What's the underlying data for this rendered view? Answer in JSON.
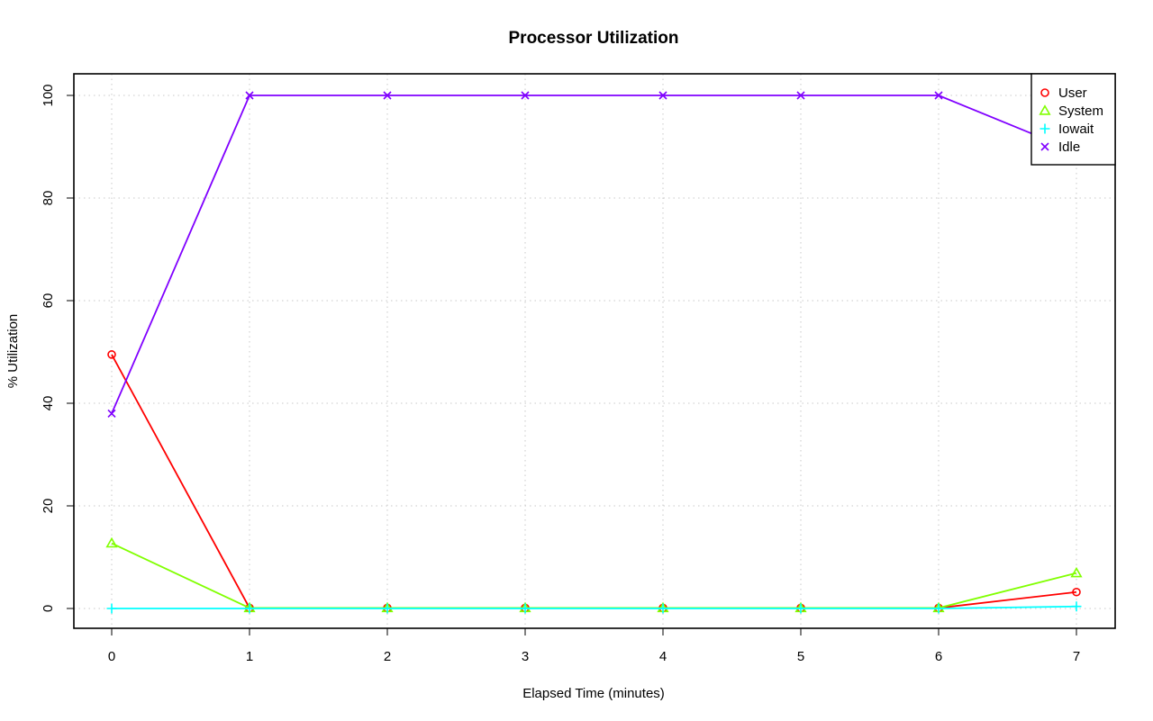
{
  "chart_data": {
    "type": "line",
    "title": "Processor Utilization",
    "xlabel": "Elapsed Time (minutes)",
    "ylabel": "% Utilization",
    "x": [
      0,
      1,
      2,
      3,
      4,
      5,
      6,
      7
    ],
    "xlim": [
      0,
      7
    ],
    "ylim": [
      0,
      100
    ],
    "x_ticks": [
      "0",
      "1",
      "2",
      "3",
      "4",
      "5",
      "6",
      "7"
    ],
    "y_ticks": [
      "0",
      "20",
      "40",
      "60",
      "80",
      "100"
    ],
    "grid": true,
    "legend_position": "top-right",
    "series": [
      {
        "name": "User",
        "color": "#ff0000",
        "marker": "circle",
        "values": [
          49.5,
          0.1,
          0.1,
          0.1,
          0.1,
          0.1,
          0.1,
          3.2
        ]
      },
      {
        "name": "System",
        "color": "#80ff00",
        "marker": "triangle",
        "values": [
          12.7,
          0.1,
          0.1,
          0.1,
          0.1,
          0.1,
          0.1,
          6.9
        ]
      },
      {
        "name": "Iowait",
        "color": "#00ffff",
        "marker": "plus",
        "values": [
          0,
          0,
          0,
          0,
          0,
          0,
          0,
          0.4
        ]
      },
      {
        "name": "Idle",
        "color": "#8000ff",
        "marker": "cross",
        "values": [
          38.0,
          100,
          100,
          100,
          100,
          100,
          100,
          89.0
        ]
      }
    ]
  }
}
